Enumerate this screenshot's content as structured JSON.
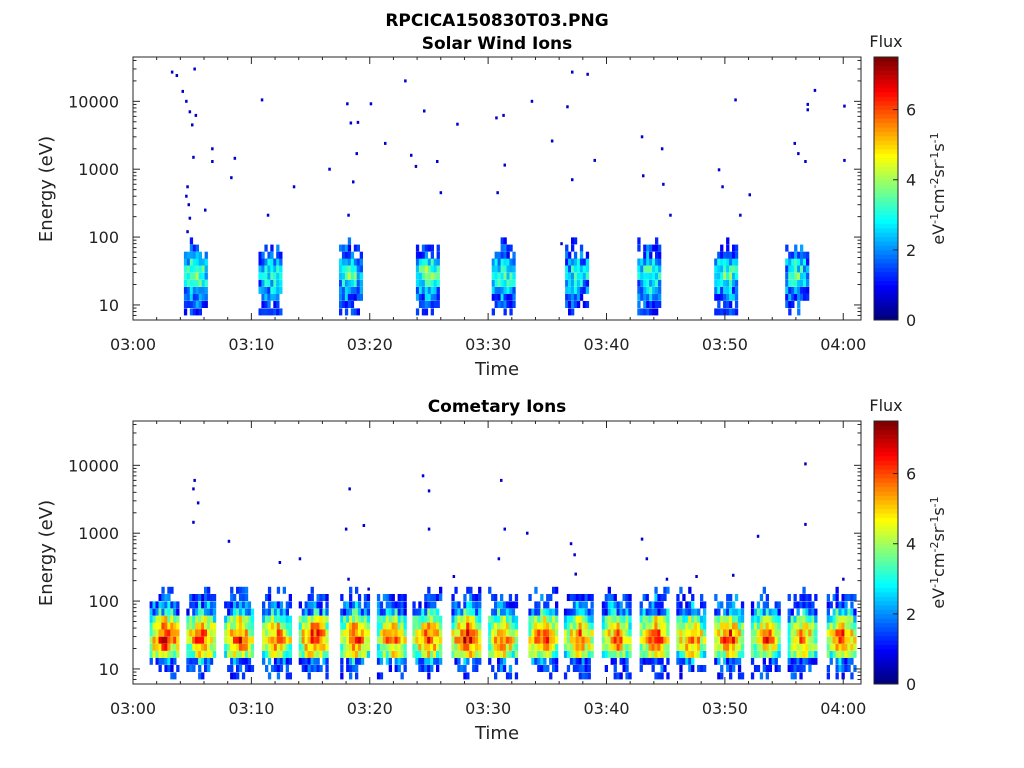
{
  "figure_title": "RPCICA150830T03.PNG",
  "chart_data": [
    {
      "type": "heatmap",
      "title": "Solar Wind Ions",
      "xlabel": "Time",
      "ylabel": "Energy (eV)",
      "xticks": [
        "03:00",
        "03:10",
        "03:20",
        "03:30",
        "03:40",
        "03:50",
        "04:00"
      ],
      "xlim_minutes": [
        0,
        61.5
      ],
      "yscale": "log",
      "yticks": [
        "10",
        "100",
        "1000",
        "10000"
      ],
      "ylim": [
        6,
        45000
      ],
      "colorbar": {
        "label": "Flux",
        "units": "eV-1cm-2sr-1s-1",
        "ticks": [
          "0",
          "2",
          "4",
          "6"
        ],
        "range": [
          0,
          7.5
        ],
        "colormap": [
          "#00008f",
          "#0000ff",
          "#0080ff",
          "#00ffff",
          "#80ff80",
          "#ffff00",
          "#ff8000",
          "#ff0000",
          "#800000"
        ]
      },
      "bursts": [
        {
          "t": 5.2,
          "intensity": 0.55
        },
        {
          "t": 11.5,
          "intensity": 0.45
        },
        {
          "t": 18.3,
          "intensity": 0.5
        },
        {
          "t": 24.8,
          "intensity": 0.55
        },
        {
          "t": 31.2,
          "intensity": 0.5
        },
        {
          "t": 37.4,
          "intensity": 0.45
        },
        {
          "t": 43.5,
          "intensity": 0.5
        },
        {
          "t": 50.0,
          "intensity": 0.5
        },
        {
          "t": 56.0,
          "intensity": 0.45
        }
      ],
      "sparse_points": [
        {
          "t": 3.2,
          "e": 27000
        },
        {
          "t": 3.6,
          "e": 24000
        },
        {
          "t": 4.1,
          "e": 14000
        },
        {
          "t": 4.4,
          "e": 10000
        },
        {
          "t": 4.7,
          "e": 7000
        },
        {
          "t": 4.9,
          "e": 4500
        },
        {
          "t": 5.1,
          "e": 30000
        },
        {
          "t": 5.2,
          "e": 6200
        },
        {
          "t": 5.0,
          "e": 1500
        },
        {
          "t": 4.5,
          "e": 550
        },
        {
          "t": 4.4,
          "e": 400
        },
        {
          "t": 4.6,
          "e": 300
        },
        {
          "t": 4.7,
          "e": 190
        },
        {
          "t": 4.5,
          "e": 120
        },
        {
          "t": 6.0,
          "e": 250
        },
        {
          "t": 6.6,
          "e": 2000
        },
        {
          "t": 6.6,
          "e": 1300
        },
        {
          "t": 8.2,
          "e": 750
        },
        {
          "t": 8.5,
          "e": 1450
        },
        {
          "t": 10.8,
          "e": 10500
        },
        {
          "t": 11.3,
          "e": 210
        },
        {
          "t": 13.5,
          "e": 550
        },
        {
          "t": 16.5,
          "e": 1000
        },
        {
          "t": 18.0,
          "e": 9200
        },
        {
          "t": 18.3,
          "e": 4800
        },
        {
          "t": 18.9,
          "e": 4900
        },
        {
          "t": 18.8,
          "e": 1700
        },
        {
          "t": 18.5,
          "e": 650
        },
        {
          "t": 18.1,
          "e": 210
        },
        {
          "t": 20.0,
          "e": 9200
        },
        {
          "t": 21.2,
          "e": 2400
        },
        {
          "t": 22.9,
          "e": 20000
        },
        {
          "t": 23.4,
          "e": 1600
        },
        {
          "t": 23.8,
          "e": 1100
        },
        {
          "t": 24.5,
          "e": 7200
        },
        {
          "t": 25.6,
          "e": 1300
        },
        {
          "t": 25.9,
          "e": 450
        },
        {
          "t": 27.3,
          "e": 4600
        },
        {
          "t": 30.6,
          "e": 5700
        },
        {
          "t": 31.2,
          "e": 6200
        },
        {
          "t": 30.7,
          "e": 450
        },
        {
          "t": 31.3,
          "e": 1150
        },
        {
          "t": 33.6,
          "e": 10000
        },
        {
          "t": 35.3,
          "e": 2600
        },
        {
          "t": 36.6,
          "e": 8300
        },
        {
          "t": 37.0,
          "e": 27000
        },
        {
          "t": 38.3,
          "e": 25000
        },
        {
          "t": 37.0,
          "e": 700
        },
        {
          "t": 38.9,
          "e": 1350
        },
        {
          "t": 36.1,
          "e": 80
        },
        {
          "t": 42.9,
          "e": 3000
        },
        {
          "t": 43.0,
          "e": 800
        },
        {
          "t": 44.6,
          "e": 2000
        },
        {
          "t": 44.7,
          "e": 600
        },
        {
          "t": 45.3,
          "e": 210
        },
        {
          "t": 49.4,
          "e": 980
        },
        {
          "t": 49.7,
          "e": 550
        },
        {
          "t": 50.8,
          "e": 10500
        },
        {
          "t": 51.2,
          "e": 210
        },
        {
          "t": 52.0,
          "e": 420
        },
        {
          "t": 55.8,
          "e": 2400
        },
        {
          "t": 56.1,
          "e": 1700
        },
        {
          "t": 56.7,
          "e": 1300
        },
        {
          "t": 56.9,
          "e": 9000
        },
        {
          "t": 56.9,
          "e": 7500
        },
        {
          "t": 57.5,
          "e": 14500
        },
        {
          "t": 60.0,
          "e": 8500
        },
        {
          "t": 60.0,
          "e": 1350
        }
      ]
    },
    {
      "type": "heatmap",
      "title": "Cometary Ions",
      "xlabel": "Time",
      "ylabel": "Energy (eV)",
      "xticks": [
        "03:00",
        "03:10",
        "03:20",
        "03:30",
        "03:40",
        "03:50",
        "04:00"
      ],
      "xlim_minutes": [
        0,
        61.5
      ],
      "yscale": "log",
      "yticks": [
        "10",
        "100",
        "1000",
        "10000"
      ],
      "ylim": [
        6,
        45000
      ],
      "colorbar": {
        "label": "Flux",
        "units": "eV-1cm-2sr-1s-1",
        "ticks": [
          "0",
          "2",
          "4",
          "6"
        ],
        "range": [
          0,
          7.5
        ],
        "colormap": [
          "#00008f",
          "#0000ff",
          "#0080ff",
          "#00ffff",
          "#80ff80",
          "#ffff00",
          "#ff8000",
          "#ff0000",
          "#800000"
        ]
      },
      "bursts": [
        {
          "t": 2.6,
          "intensity": 0.95
        },
        {
          "t": 5.7,
          "intensity": 0.9
        },
        {
          "t": 8.9,
          "intensity": 0.9
        },
        {
          "t": 12.1,
          "intensity": 0.85
        },
        {
          "t": 15.2,
          "intensity": 0.95
        },
        {
          "t": 18.7,
          "intensity": 0.9
        },
        {
          "t": 21.8,
          "intensity": 0.85
        },
        {
          "t": 24.8,
          "intensity": 0.9
        },
        {
          "t": 28.1,
          "intensity": 0.95
        },
        {
          "t": 31.2,
          "intensity": 0.85
        },
        {
          "t": 34.6,
          "intensity": 0.9
        },
        {
          "t": 37.6,
          "intensity": 0.85
        },
        {
          "t": 40.8,
          "intensity": 0.85
        },
        {
          "t": 44.0,
          "intensity": 0.9
        },
        {
          "t": 47.1,
          "intensity": 0.85
        },
        {
          "t": 50.3,
          "intensity": 0.9
        },
        {
          "t": 53.4,
          "intensity": 0.85
        },
        {
          "t": 56.5,
          "intensity": 0.8
        },
        {
          "t": 59.8,
          "intensity": 0.9
        }
      ],
      "sparse_points": [
        {
          "t": 5.1,
          "e": 6000
        },
        {
          "t": 5.0,
          "e": 4500
        },
        {
          "t": 5.4,
          "e": 2800
        },
        {
          "t": 5.0,
          "e": 1450
        },
        {
          "t": 8.0,
          "e": 760
        },
        {
          "t": 12.3,
          "e": 370
        },
        {
          "t": 14.0,
          "e": 420
        },
        {
          "t": 17.9,
          "e": 1150
        },
        {
          "t": 18.2,
          "e": 4500
        },
        {
          "t": 19.4,
          "e": 1300
        },
        {
          "t": 18.1,
          "e": 210
        },
        {
          "t": 19.8,
          "e": 150
        },
        {
          "t": 24.4,
          "e": 7000
        },
        {
          "t": 24.9,
          "e": 4200
        },
        {
          "t": 24.9,
          "e": 1150
        },
        {
          "t": 27.0,
          "e": 230
        },
        {
          "t": 31.0,
          "e": 6000
        },
        {
          "t": 31.3,
          "e": 1150
        },
        {
          "t": 30.8,
          "e": 420
        },
        {
          "t": 33.2,
          "e": 1000
        },
        {
          "t": 36.9,
          "e": 700
        },
        {
          "t": 37.2,
          "e": 480
        },
        {
          "t": 37.3,
          "e": 250
        },
        {
          "t": 42.9,
          "e": 820
        },
        {
          "t": 43.3,
          "e": 420
        },
        {
          "t": 45.0,
          "e": 210
        },
        {
          "t": 47.5,
          "e": 230
        },
        {
          "t": 50.6,
          "e": 240
        },
        {
          "t": 52.7,
          "e": 900
        },
        {
          "t": 56.7,
          "e": 10500
        },
        {
          "t": 56.7,
          "e": 1350
        },
        {
          "t": 59.9,
          "e": 210
        }
      ]
    }
  ]
}
